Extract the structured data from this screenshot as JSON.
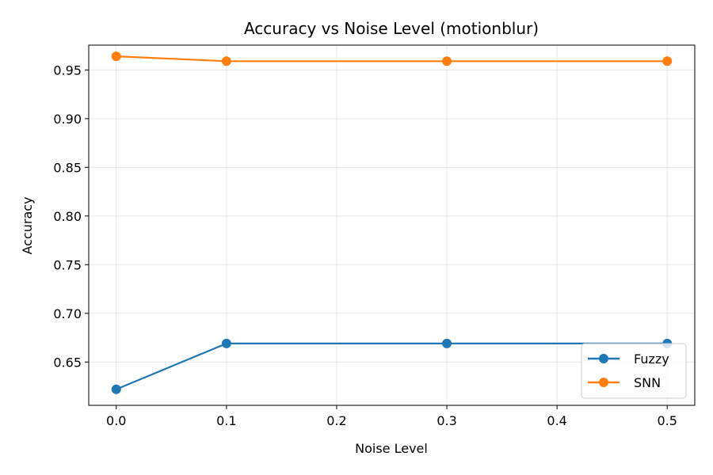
{
  "chart_data": {
    "type": "line",
    "title": "Accuracy vs Noise Level (motionblur)",
    "xlabel": "Noise Level",
    "ylabel": "Accuracy",
    "xlim": [
      -0.025,
      0.525
    ],
    "ylim": [
      0.6055,
      0.9755
    ],
    "xticks": [
      0.0,
      0.1,
      0.2,
      0.3,
      0.4,
      0.5
    ],
    "xtick_labels": [
      "0.0",
      "0.1",
      "0.2",
      "0.3",
      "0.4",
      "0.5"
    ],
    "yticks": [
      0.65,
      0.7,
      0.75,
      0.8,
      0.85,
      0.9,
      0.95
    ],
    "ytick_labels": [
      "0.65",
      "0.70",
      "0.75",
      "0.80",
      "0.85",
      "0.90",
      "0.95"
    ],
    "grid": true,
    "legend_position": "bottom-right",
    "series": [
      {
        "name": "Fuzzy",
        "color": "#1f77b4",
        "x": [
          0.0,
          0.1,
          0.3,
          0.5
        ],
        "y": [
          0.622,
          0.669,
          0.669,
          0.669
        ]
      },
      {
        "name": "SNN",
        "color": "#ff7f0e",
        "x": [
          0.0,
          0.1,
          0.3,
          0.5
        ],
        "y": [
          0.964,
          0.959,
          0.959,
          0.959
        ]
      }
    ]
  }
}
